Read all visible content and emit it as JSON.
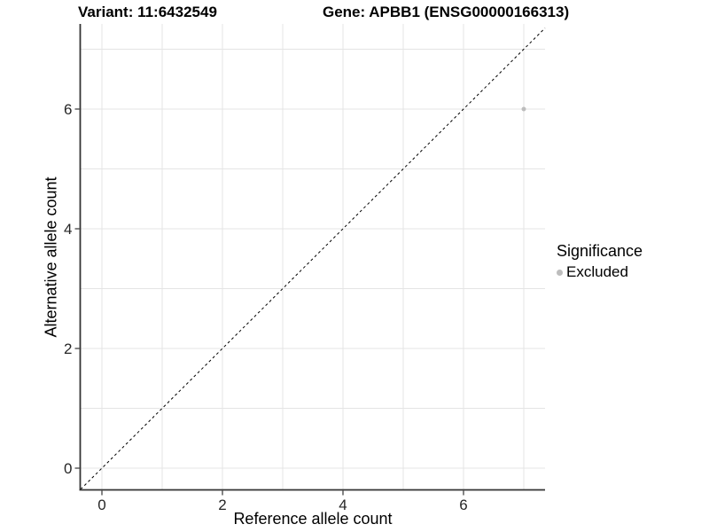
{
  "header": {
    "variant_title": "Variant: 11:6432549",
    "gene_title": "Gene: APBB1 (ENSG00000166313)"
  },
  "legend": {
    "title": "Significance",
    "items": [
      {
        "label": "Excluded",
        "color": "#bdbdbd"
      }
    ]
  },
  "colors": {
    "background": "#ffffff",
    "grid": "#e4e4e4",
    "axis_line": "#333333",
    "tick_mark": "#333333",
    "tick_label": "#262626",
    "reference_line": "#000000",
    "point": "#bdbdbd"
  },
  "chart_data": {
    "type": "scatter",
    "title": "Variant: 11:6432549   Gene: APBB1 (ENSG00000166313)",
    "xlabel": "Reference allele count",
    "ylabel": "Alternative allele count",
    "xlim": [
      -0.353,
      7.353
    ],
    "ylim": [
      -0.36,
      7.42
    ],
    "x_ticks": [
      0,
      2,
      4,
      6
    ],
    "y_ticks": [
      0,
      2,
      4,
      6
    ],
    "x_grid": [
      0,
      1,
      2,
      3,
      4,
      5,
      6,
      7
    ],
    "y_grid": [
      0,
      1,
      2,
      3,
      4,
      5,
      6,
      7
    ],
    "grid": "on",
    "legend_position": "right",
    "reference_line": {
      "style": "dashed",
      "slope": 1,
      "intercept": 0,
      "color": "#000000",
      "equation": "y = x"
    },
    "series": [
      {
        "name": "Excluded",
        "color": "#bdbdbd",
        "point_radius": 2.5,
        "points": [
          {
            "x": 7,
            "y": 6
          }
        ]
      }
    ]
  }
}
